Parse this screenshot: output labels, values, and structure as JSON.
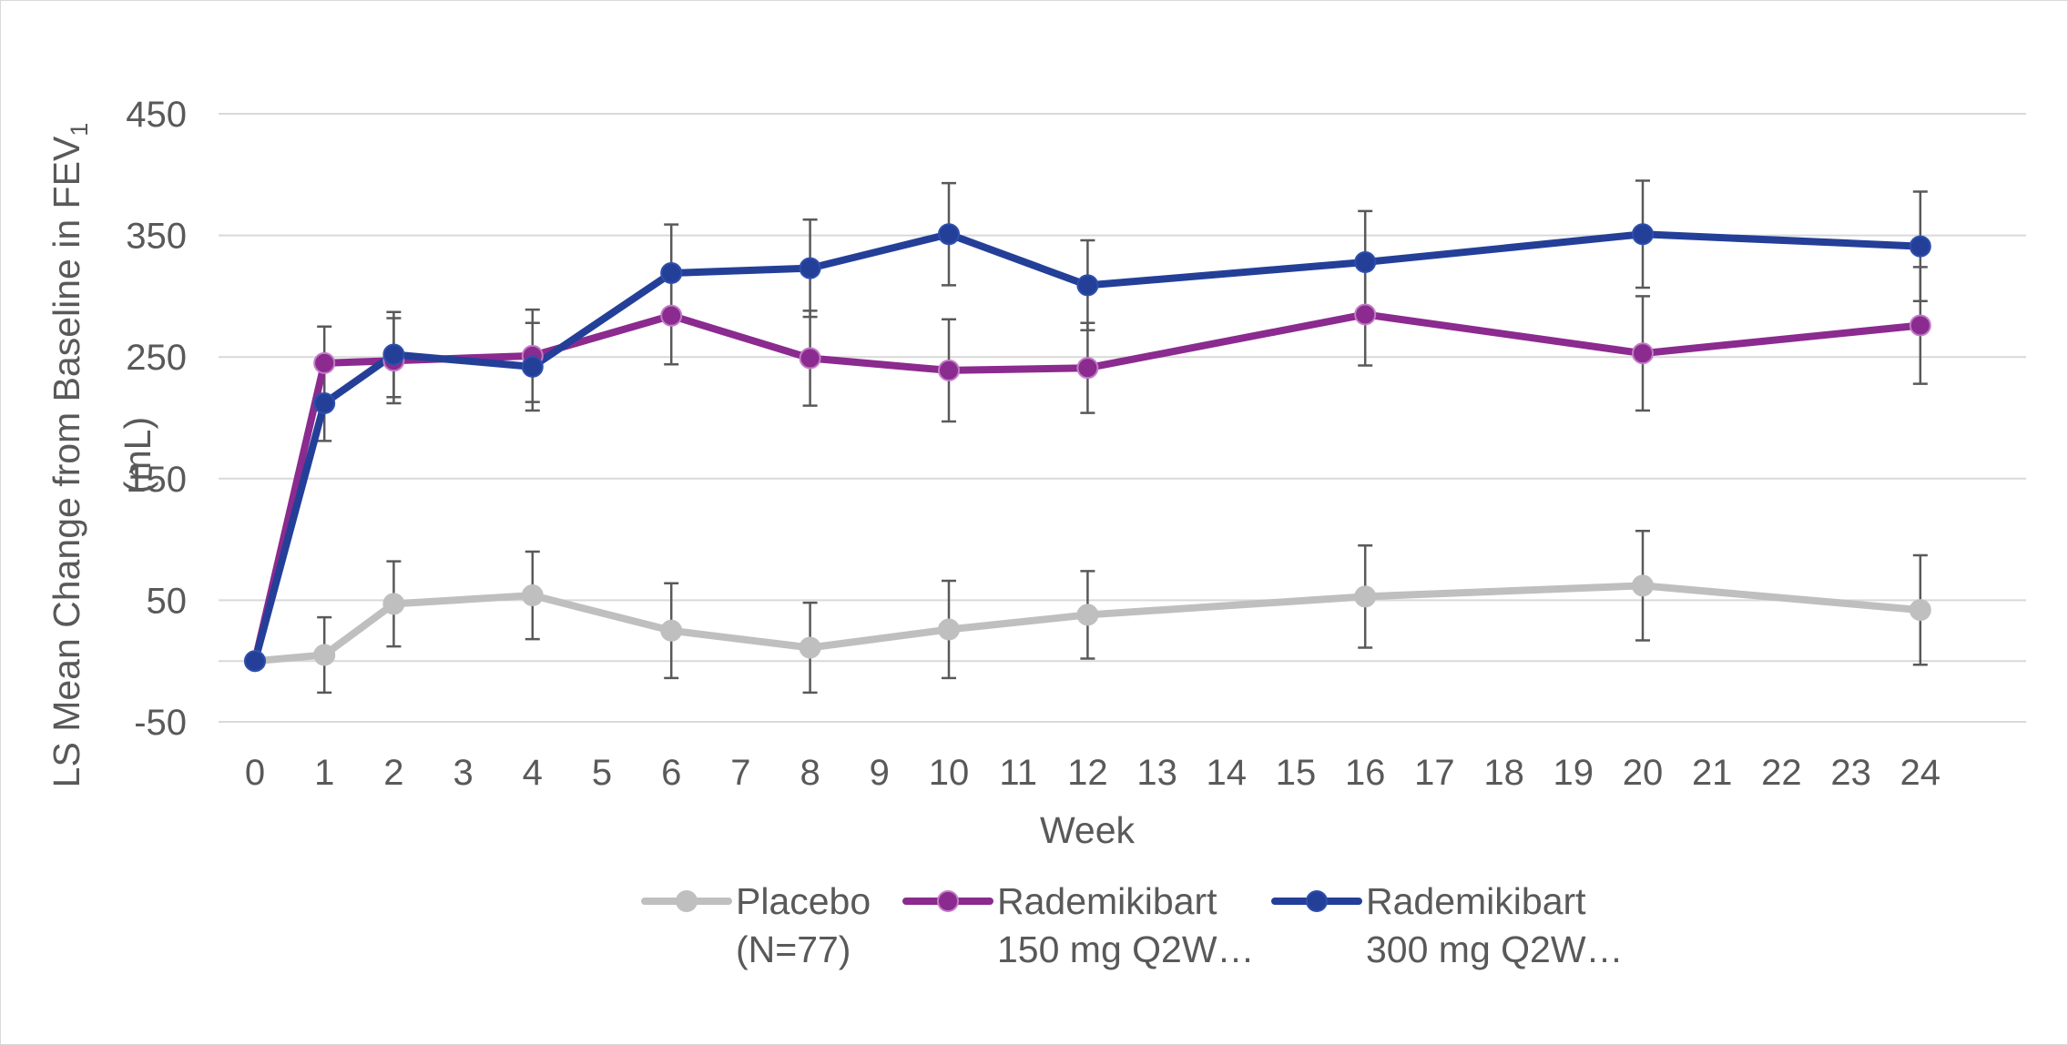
{
  "chart_data": {
    "type": "line",
    "xlabel": "Week",
    "ylabel": "LS Mean Change from Baseline in FEV",
    "ylabel_subscript": "1",
    "ylabel_unit": "(mL)",
    "ylim": [
      -50,
      450
    ],
    "yticks": [
      -50,
      50,
      150,
      250,
      350,
      450
    ],
    "ytick_labels": [
      "-50",
      "50",
      "150",
      "250",
      "350",
      "450"
    ],
    "x_categories": [
      "0",
      "1",
      "2",
      "3",
      "4",
      "5",
      "6",
      "7",
      "8",
      "9",
      "10",
      "11",
      "12",
      "13",
      "14",
      "15",
      "16",
      "17",
      "18",
      "19",
      "20",
      "21",
      "22",
      "23",
      "24"
    ],
    "grid": "horizontal",
    "legend_position": "bottom",
    "series": [
      {
        "name_line1": "Placebo",
        "name_line2": "(N=77)",
        "color": "#bfbfbf",
        "marker_stroke": "#bfbfbf",
        "x": [
          0,
          1,
          2,
          4,
          6,
          8,
          10,
          12,
          16,
          20,
          24
        ],
        "y": [
          0,
          5,
          47,
          54,
          25,
          11,
          26,
          38,
          53,
          62,
          42
        ],
        "err": [
          0,
          31,
          35,
          36,
          39,
          37,
          40,
          36,
          42,
          45,
          45
        ]
      },
      {
        "name_line1": "Rademikibart",
        "name_line2": "150 mg Q2W…",
        "color": "#8b2a8f",
        "marker_stroke": "#c27cc6",
        "x": [
          0,
          1,
          2,
          4,
          6,
          8,
          10,
          12,
          16,
          20,
          24
        ],
        "y": [
          0,
          245,
          247,
          251,
          284,
          249,
          239,
          241,
          285,
          253,
          276
        ],
        "err": [
          0,
          30,
          35,
          38,
          40,
          39,
          42,
          37,
          42,
          47,
          48
        ]
      },
      {
        "name_line1": "Rademikibart",
        "name_line2": "300 mg Q2W…",
        "color": "#243f98",
        "marker_stroke": "#2e4fae",
        "x": [
          0,
          1,
          2,
          4,
          6,
          8,
          10,
          12,
          16,
          20,
          24
        ],
        "y": [
          0,
          212,
          252,
          242,
          319,
          323,
          351,
          309,
          328,
          351,
          341
        ],
        "err": [
          0,
          31,
          35,
          36,
          40,
          40,
          42,
          37,
          42,
          44,
          45
        ]
      }
    ]
  }
}
